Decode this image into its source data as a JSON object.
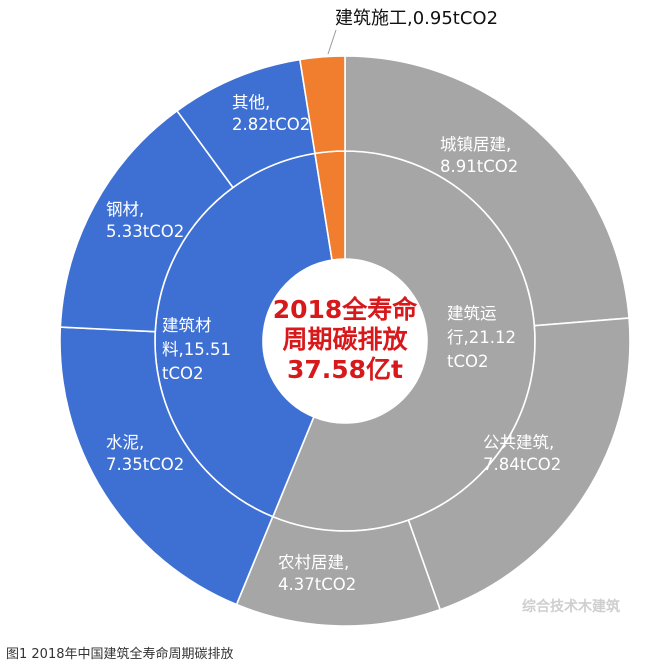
{
  "caption": "图1 2018年中国建筑全寿命周期碳排放",
  "watermark": "综合技术木建筑",
  "colors": {
    "materials": "#3e70d3",
    "construction": "#f17e2e",
    "operation": "#a6a6a6",
    "center_text": "#d7191c",
    "background": "#ffffff"
  },
  "chart_data": {
    "type": "pie",
    "title": "",
    "center_label": [
      "2018全寿命",
      "周期碳排放",
      "37.58亿t"
    ],
    "inner_ring": [
      {
        "name": "建筑运行",
        "value": 21.12,
        "label_lines": [
          "建筑运",
          "行,21.12",
          "tCO2"
        ]
      },
      {
        "name": "建筑材料",
        "value": 15.51,
        "label_lines": [
          "建筑材",
          "料,15.51",
          "tCO2"
        ]
      },
      {
        "name": "建筑施工",
        "value": 0.95,
        "label_lines": []
      }
    ],
    "outer_ring": [
      {
        "name": "城镇居建",
        "value": 8.91,
        "group": "建筑运行",
        "label_lines": [
          "城镇居建,",
          "8.91tCO2"
        ]
      },
      {
        "name": "公共建筑",
        "value": 7.84,
        "group": "建筑运行",
        "label_lines": [
          "公共建筑,",
          "7.84tCO2"
        ]
      },
      {
        "name": "农村居建",
        "value": 4.37,
        "group": "建筑运行",
        "label_lines": [
          "农村居建,",
          "4.37tCO2"
        ]
      },
      {
        "name": "水泥",
        "value": 7.35,
        "group": "建筑材料",
        "label_lines": [
          "水泥,",
          "7.35tCO2"
        ]
      },
      {
        "name": "钢材",
        "value": 5.33,
        "group": "建筑材料",
        "label_lines": [
          "钢材,",
          "5.33tCO2"
        ]
      },
      {
        "name": "其他",
        "value": 2.82,
        "group": "建筑材料",
        "label_lines": [
          "其他,",
          "2.82tCO2"
        ]
      },
      {
        "name": "建筑施工",
        "value": 0.95,
        "group": "建筑施工",
        "label_lines": [
          "建筑施工,0.95tCO2"
        ]
      }
    ]
  }
}
